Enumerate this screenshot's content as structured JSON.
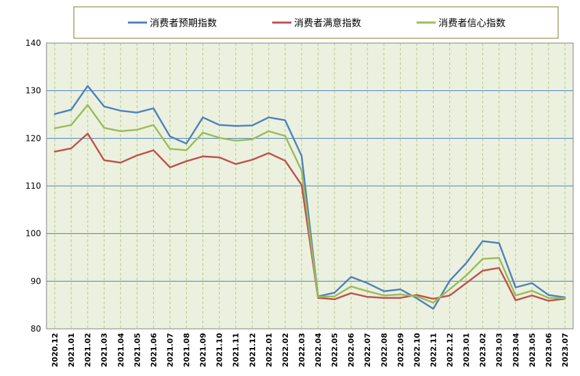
{
  "chart_data": {
    "type": "line",
    "title": "",
    "xlabel": "",
    "ylabel": "",
    "ylim": [
      80,
      140
    ],
    "yticks": [
      80,
      90,
      100,
      110,
      120,
      130,
      140
    ],
    "grid": true,
    "legend_position": "top",
    "categories": [
      "2020.12",
      "2021.01",
      "2021.02",
      "2021.03",
      "2021.04",
      "2021.05",
      "2021.06",
      "2021.07",
      "2021.08",
      "2021.09",
      "2021.10",
      "2021.11",
      "2021.12",
      "2022.01",
      "2022.02",
      "2022.03",
      "2022.04",
      "2022.05",
      "2022.06",
      "2022.07",
      "2022.08",
      "2022.09",
      "2022.10",
      "2022.11",
      "2022.12",
      "2023.01",
      "2023.02",
      "2023.03",
      "2023.04",
      "2023.05",
      "2023.06",
      "2023.07"
    ],
    "series": [
      {
        "name": "消费者预期指数",
        "color": "#4f81bd",
        "values": [
          125.1,
          126.0,
          131.0,
          126.7,
          125.8,
          125.4,
          126.3,
          120.4,
          118.9,
          124.4,
          122.8,
          122.6,
          122.7,
          124.4,
          123.8,
          116.3,
          86.8,
          87.6,
          90.9,
          89.6,
          87.9,
          88.3,
          86.4,
          84.2,
          90.1,
          93.8,
          98.4,
          98.0,
          88.7,
          89.6,
          87.1,
          86.6
        ]
      },
      {
        "name": "消费者满意指数",
        "color": "#c0504d",
        "values": [
          117.2,
          117.9,
          121.0,
          115.4,
          114.9,
          116.4,
          117.5,
          113.9,
          115.2,
          116.2,
          116.0,
          114.6,
          115.5,
          116.9,
          115.3,
          110.2,
          86.5,
          86.2,
          87.5,
          86.7,
          86.5,
          86.5,
          87.1,
          86.3,
          87.0,
          89.6,
          92.2,
          92.8,
          86.0,
          87.0,
          85.9,
          86.3
        ]
      },
      {
        "name": "消费者信心指数",
        "color": "#9bbb59",
        "values": [
          122.1,
          122.8,
          127.0,
          122.2,
          121.5,
          121.8,
          122.8,
          117.8,
          117.5,
          121.2,
          120.1,
          119.5,
          119.8,
          121.5,
          120.5,
          113.2,
          86.7,
          86.8,
          88.9,
          87.9,
          87.0,
          87.2,
          86.8,
          85.5,
          88.3,
          91.2,
          94.7,
          94.9,
          87.0,
          88.0,
          86.5,
          86.4
        ]
      }
    ]
  }
}
